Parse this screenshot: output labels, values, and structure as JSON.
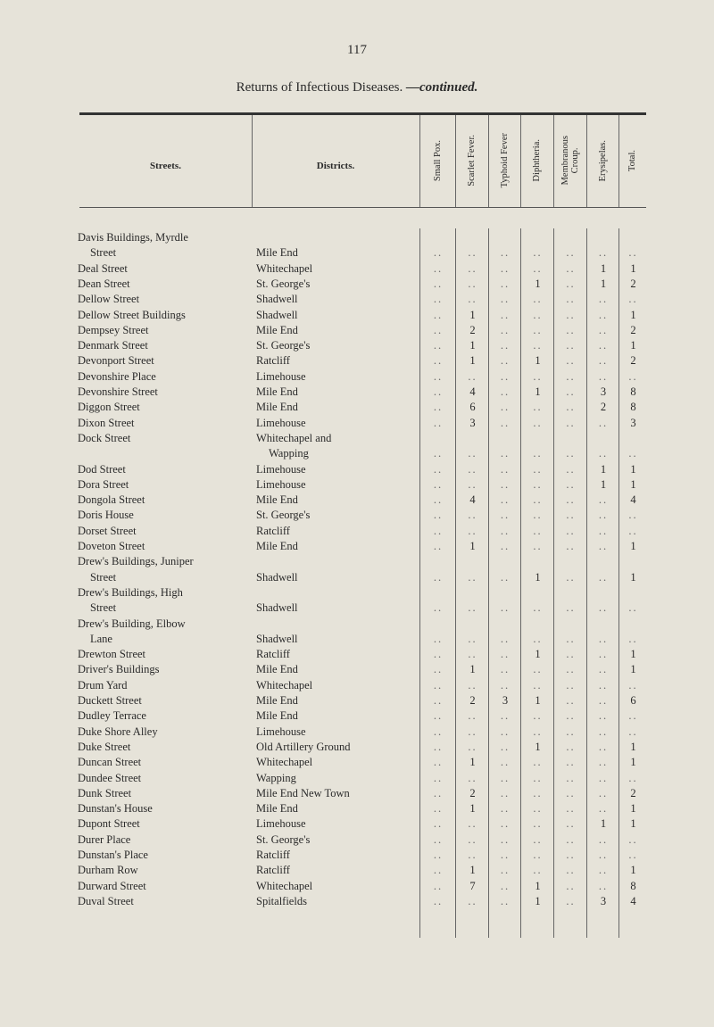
{
  "page_number": "117",
  "title": "Returns of Infectious Diseases.",
  "title_suffix": "—continued.",
  "headers": {
    "streets": "Streets.",
    "districts": "Districts.",
    "diseases": [
      "Small Pox.",
      "Scarlet Fever.",
      "Typhoid Fever",
      "Diphtheria.",
      "Membranous\nCroup.",
      "Erysipelas.",
      "Total."
    ]
  },
  "rows": [
    {
      "street": [
        "Davis Buildings, Myrdle",
        "Street"
      ],
      "district": [
        "Mile End"
      ],
      "values": [
        "..",
        "..",
        "..",
        "..",
        "..",
        "..",
        ".."
      ]
    },
    {
      "street": [
        "Deal Street"
      ],
      "district": [
        "Whitechapel"
      ],
      "values": [
        "..",
        "..",
        "..",
        "..",
        "..",
        "1",
        "1"
      ]
    },
    {
      "street": [
        "Dean Street"
      ],
      "district": [
        "St. George's"
      ],
      "values": [
        "..",
        "..",
        "..",
        "1",
        "..",
        "1",
        "2"
      ]
    },
    {
      "street": [
        "Dellow Street"
      ],
      "district": [
        "Shadwell"
      ],
      "values": [
        "..",
        "..",
        "..",
        "..",
        "..",
        "..",
        ".."
      ]
    },
    {
      "street": [
        "Dellow Street Buildings"
      ],
      "district": [
        "Shadwell"
      ],
      "values": [
        "..",
        "1",
        "..",
        "..",
        "..",
        "..",
        "1"
      ]
    },
    {
      "street": [
        "Dempsey Street"
      ],
      "district": [
        "Mile End"
      ],
      "values": [
        "..",
        "2",
        "..",
        "..",
        "..",
        "..",
        "2"
      ]
    },
    {
      "street": [
        "Denmark Street"
      ],
      "district": [
        "St. George's"
      ],
      "values": [
        "..",
        "1",
        "..",
        "..",
        "..",
        "..",
        "1"
      ]
    },
    {
      "street": [
        "Devonport Street"
      ],
      "district": [
        "Ratcliff"
      ],
      "values": [
        "..",
        "1",
        "..",
        "1",
        "..",
        "..",
        "2"
      ]
    },
    {
      "street": [
        "Devonshire Place"
      ],
      "district": [
        "Limehouse"
      ],
      "values": [
        "..",
        "..",
        "..",
        "..",
        "..",
        "..",
        ".."
      ]
    },
    {
      "street": [
        "Devonshire Street"
      ],
      "district": [
        "Mile End"
      ],
      "values": [
        "..",
        "4",
        "..",
        "1",
        "..",
        "3",
        "8"
      ]
    },
    {
      "street": [
        "Diggon Street"
      ],
      "district": [
        "Mile End"
      ],
      "values": [
        "..",
        "6",
        "..",
        "..",
        "..",
        "2",
        "8"
      ]
    },
    {
      "street": [
        "Dixon Street"
      ],
      "district": [
        "Limehouse"
      ],
      "values": [
        "..",
        "3",
        "..",
        "..",
        "..",
        "..",
        "3"
      ]
    },
    {
      "street": [
        "Dock Street"
      ],
      "district": [
        "Whitechapel and",
        "Wapping"
      ],
      "values": [
        "..",
        "..",
        "..",
        "..",
        "..",
        "..",
        ".."
      ]
    },
    {
      "street": [
        "Dod Street"
      ],
      "district": [
        "Limehouse"
      ],
      "values": [
        "..",
        "..",
        "..",
        "..",
        "..",
        "1",
        "1"
      ]
    },
    {
      "street": [
        "Dora Street"
      ],
      "district": [
        "Limehouse"
      ],
      "values": [
        "..",
        "..",
        "..",
        "..",
        "..",
        "1",
        "1"
      ]
    },
    {
      "street": [
        "Dongola Street"
      ],
      "district": [
        "Mile End"
      ],
      "values": [
        "..",
        "4",
        "..",
        "..",
        "..",
        "..",
        "4"
      ]
    },
    {
      "street": [
        "Doris House"
      ],
      "district": [
        "St. George's"
      ],
      "values": [
        "..",
        "..",
        "..",
        "..",
        "..",
        "..",
        ".."
      ]
    },
    {
      "street": [
        "Dorset Street"
      ],
      "district": [
        "Ratcliff"
      ],
      "values": [
        "..",
        "..",
        "..",
        "..",
        "..",
        "..",
        ".."
      ]
    },
    {
      "street": [
        "Doveton Street"
      ],
      "district": [
        "Mile End"
      ],
      "values": [
        "..",
        "1",
        "..",
        "..",
        "..",
        "..",
        "1"
      ]
    },
    {
      "street": [
        "Drew's Buildings, Juniper",
        "Street"
      ],
      "district": [
        "Shadwell"
      ],
      "values": [
        "..",
        "..",
        "..",
        "1",
        "..",
        "..",
        "1"
      ]
    },
    {
      "street": [
        "Drew's Buildings, High",
        "Street"
      ],
      "district": [
        "Shadwell"
      ],
      "values": [
        "..",
        "..",
        "..",
        "..",
        "..",
        "..",
        ".."
      ]
    },
    {
      "street": [
        "Drew's Building, Elbow",
        "Lane"
      ],
      "district": [
        "Shadwell"
      ],
      "values": [
        "..",
        "..",
        "..",
        "..",
        "..",
        "..",
        ".."
      ]
    },
    {
      "street": [
        "Drewton Street"
      ],
      "district": [
        "Ratcliff"
      ],
      "values": [
        "..",
        "..",
        "..",
        "1",
        "..",
        "..",
        "1"
      ]
    },
    {
      "street": [
        "Driver's Buildings"
      ],
      "district": [
        "Mile End"
      ],
      "values": [
        "..",
        "1",
        "..",
        "..",
        "..",
        "..",
        "1"
      ]
    },
    {
      "street": [
        "Drum Yard"
      ],
      "district": [
        "Whitechapel"
      ],
      "values": [
        "..",
        "..",
        "..",
        "..",
        "..",
        "..",
        ".."
      ]
    },
    {
      "street": [
        "Duckett Street"
      ],
      "district": [
        "Mile End"
      ],
      "values": [
        "..",
        "2",
        "3",
        "1",
        "..",
        "..",
        "6"
      ]
    },
    {
      "street": [
        "Dudley Terrace"
      ],
      "district": [
        "Mile End"
      ],
      "values": [
        "..",
        "..",
        "..",
        "..",
        "..",
        "..",
        ".."
      ]
    },
    {
      "street": [
        "Duke Shore Alley"
      ],
      "district": [
        "Limehouse"
      ],
      "values": [
        "..",
        "..",
        "..",
        "..",
        "..",
        "..",
        ".."
      ]
    },
    {
      "street": [
        "Duke Street"
      ],
      "district": [
        "Old Artillery Ground"
      ],
      "values": [
        "..",
        "..",
        "..",
        "1",
        "..",
        "..",
        "1"
      ]
    },
    {
      "street": [
        "Duncan Street"
      ],
      "district": [
        "Whitechapel"
      ],
      "values": [
        "..",
        "1",
        "..",
        "..",
        "..",
        "..",
        "1"
      ]
    },
    {
      "street": [
        "Dundee Street"
      ],
      "district": [
        "Wapping"
      ],
      "values": [
        "..",
        "..",
        "..",
        "..",
        "..",
        "..",
        ".."
      ]
    },
    {
      "street": [
        "Dunk Street"
      ],
      "district": [
        "Mile End New Town"
      ],
      "values": [
        "..",
        "2",
        "..",
        "..",
        "..",
        "..",
        "2"
      ]
    },
    {
      "street": [
        "Dunstan's House"
      ],
      "district": [
        "Mile End"
      ],
      "values": [
        "..",
        "1",
        "..",
        "..",
        "..",
        "..",
        "1"
      ]
    },
    {
      "street": [
        "Dupont Street"
      ],
      "district": [
        "Limehouse"
      ],
      "values": [
        "..",
        "..",
        "..",
        "..",
        "..",
        "1",
        "1"
      ]
    },
    {
      "street": [
        "Durer Place"
      ],
      "district": [
        "St. George's"
      ],
      "values": [
        "..",
        "..",
        "..",
        "..",
        "..",
        "..",
        ".."
      ]
    },
    {
      "street": [
        "Dunstan's Place"
      ],
      "district": [
        "Ratcliff"
      ],
      "values": [
        "..",
        "..",
        "..",
        "..",
        "..",
        "..",
        ".."
      ]
    },
    {
      "street": [
        "Durham Row"
      ],
      "district": [
        "Ratcliff"
      ],
      "values": [
        "..",
        "1",
        "..",
        "..",
        "..",
        "..",
        "1"
      ]
    },
    {
      "street": [
        "Durward Street"
      ],
      "district": [
        "Whitechapel"
      ],
      "values": [
        "..",
        "7",
        "..",
        "1",
        "..",
        "..",
        "8"
      ]
    },
    {
      "street": [
        "Duval Street"
      ],
      "district": [
        "Spitalfields"
      ],
      "values": [
        "..",
        "..",
        "..",
        "1",
        "..",
        "3",
        "4"
      ]
    }
  ]
}
